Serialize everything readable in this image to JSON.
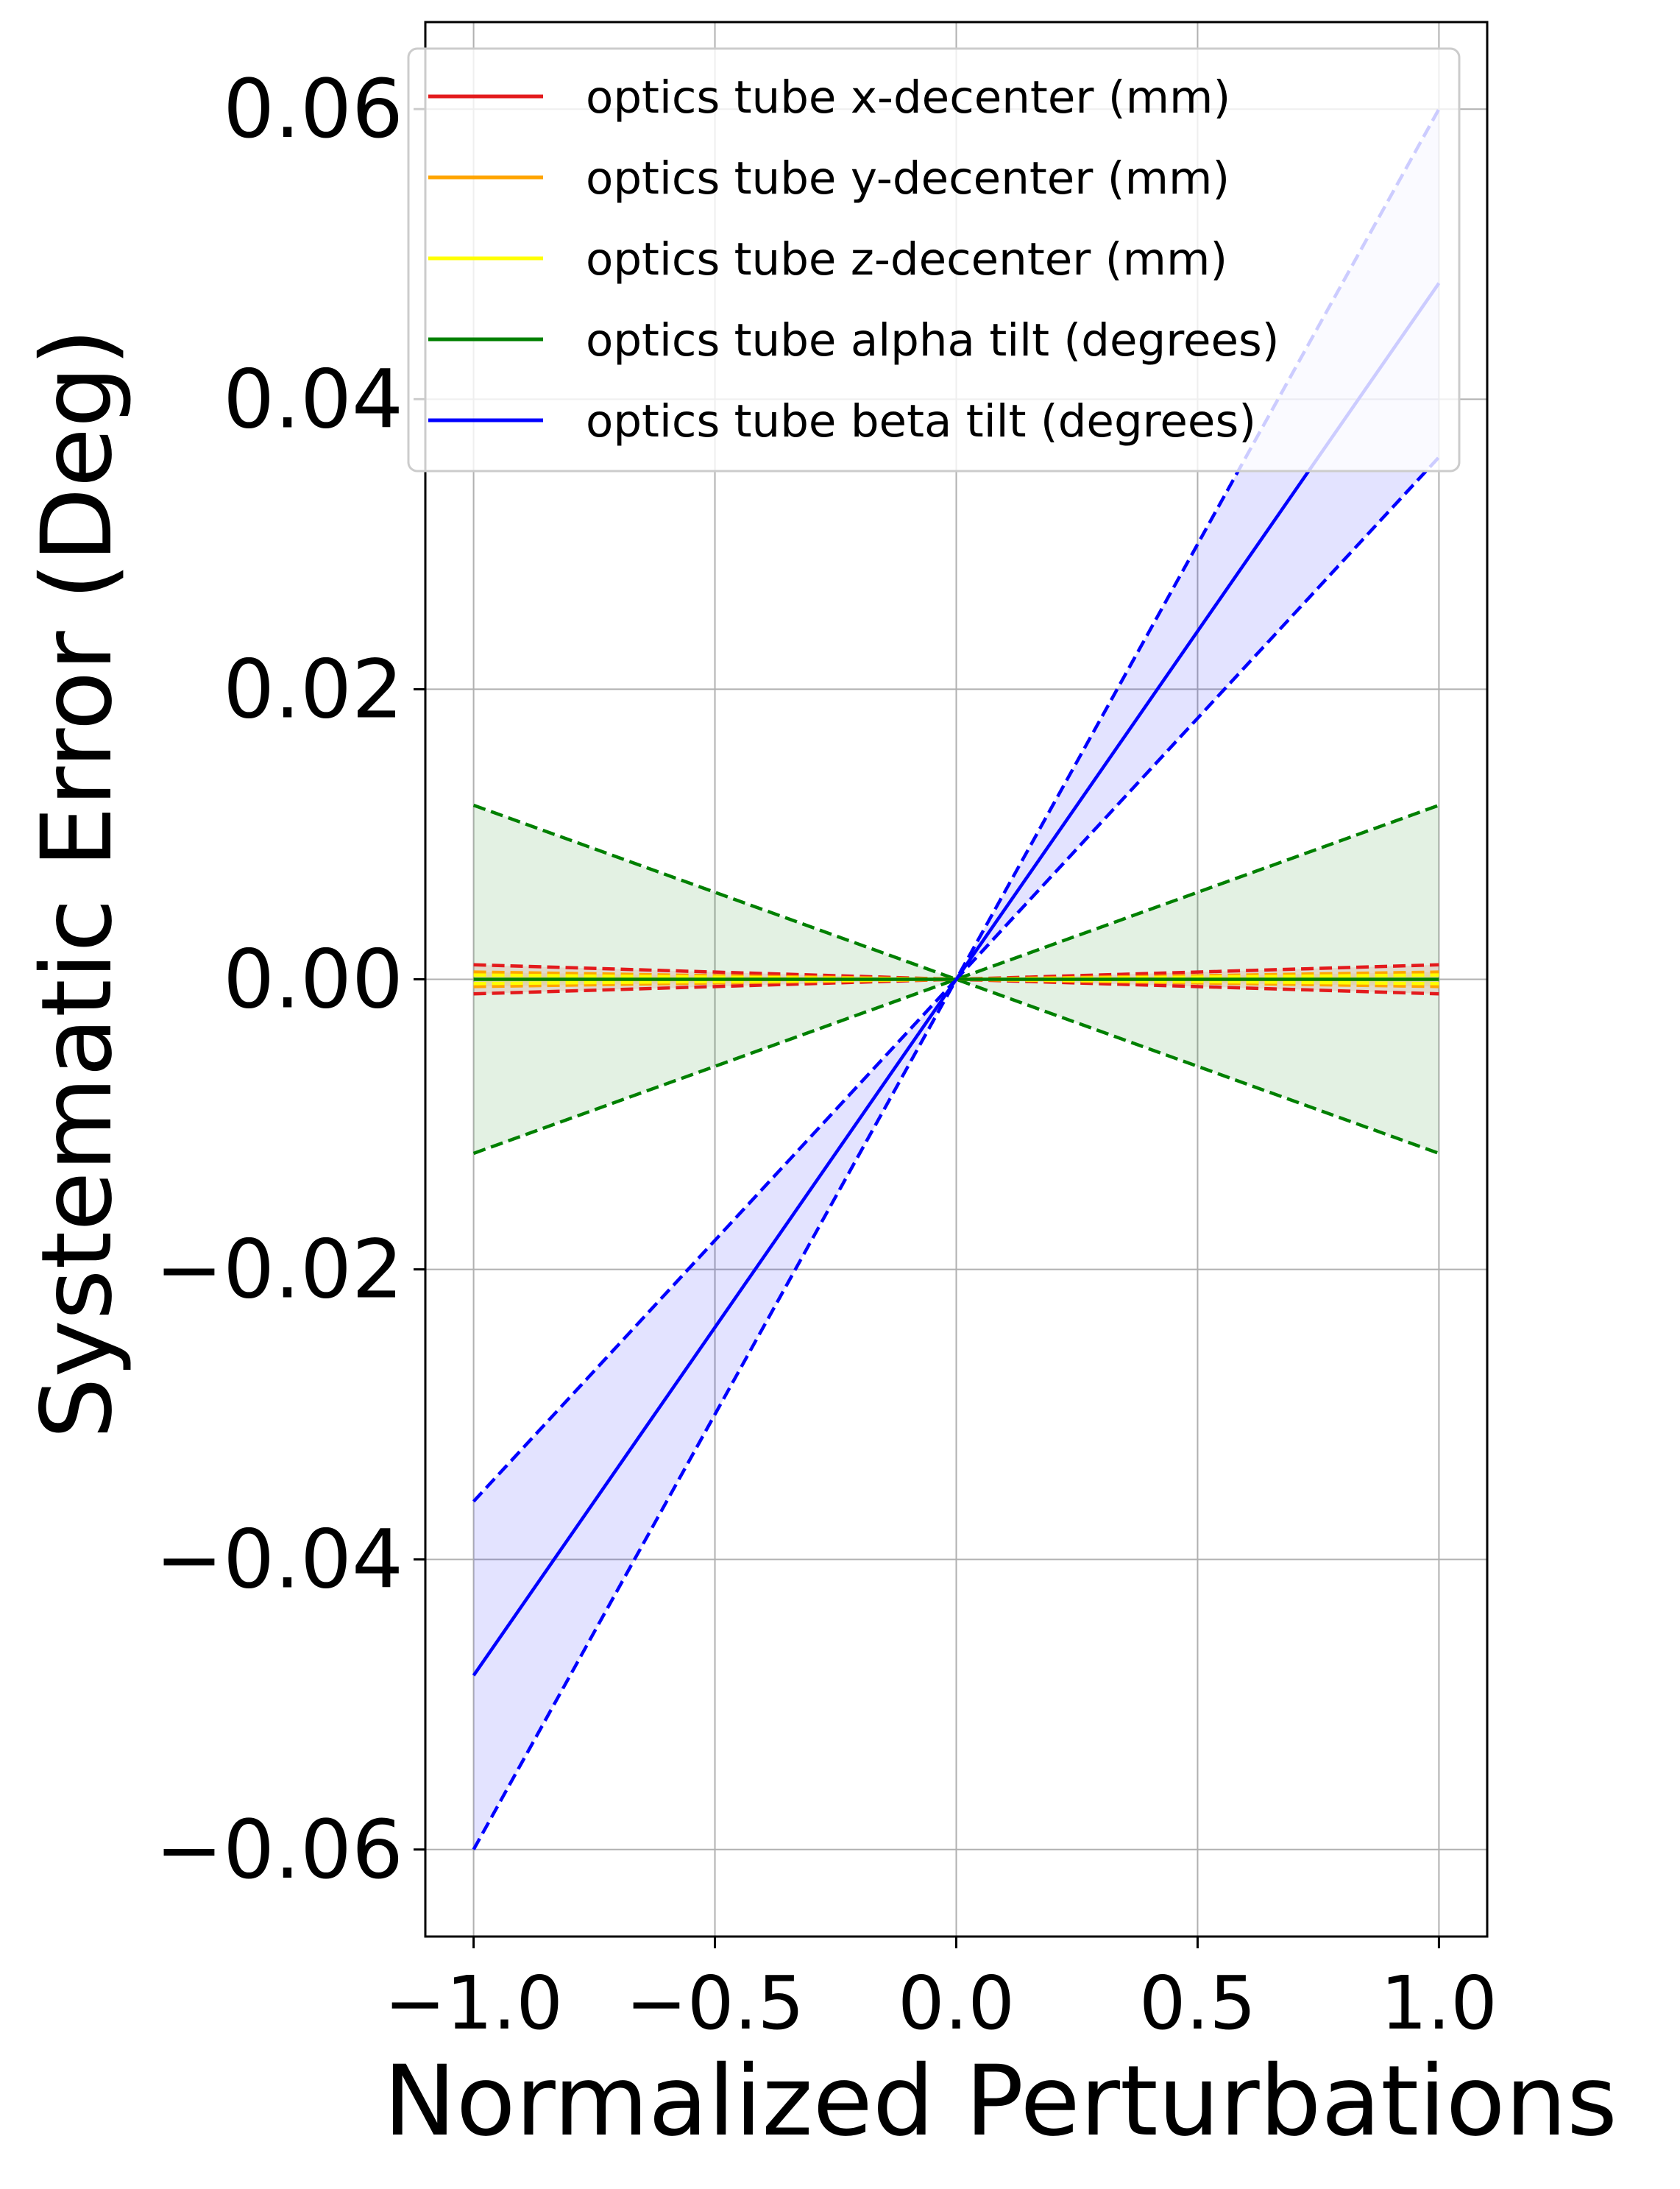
{
  "chart_data": {
    "type": "line",
    "title": "",
    "xlabel": "Normalized Perturbations",
    "ylabel": "Systematic Error (Deg)",
    "xlim": [
      -1.1,
      1.1
    ],
    "ylim": [
      -0.066,
      0.066
    ],
    "xticks": [
      -1.0,
      -0.5,
      0.0,
      0.5,
      1.0
    ],
    "xtick_labels": [
      "−1.0",
      "−0.5",
      "0.0",
      "0.5",
      "1.0"
    ],
    "yticks": [
      -0.06,
      -0.04,
      -0.02,
      0.0,
      0.02,
      0.04,
      0.06
    ],
    "ytick_labels": [
      "−0.06",
      "−0.04",
      "−0.02",
      "0.00",
      "0.02",
      "0.04",
      "0.06"
    ],
    "grid": true,
    "legend_position": "top-right",
    "x": [
      -1.0,
      0.0,
      1.0
    ],
    "series": [
      {
        "name": "optics tube x-decenter (mm)",
        "color": "#e31a1c",
        "values": [
          0.0,
          0.0,
          0.0
        ],
        "band_upper": [
          0.001,
          0.0,
          0.001
        ],
        "band_lower": [
          -0.001,
          0.0,
          -0.001
        ]
      },
      {
        "name": "optics tube y-decenter (mm)",
        "color": "#ffa500",
        "values": [
          0.0,
          0.0,
          0.0
        ],
        "band_upper": [
          0.0005,
          0.0,
          0.0005
        ],
        "band_lower": [
          -0.0005,
          0.0,
          -0.0005
        ]
      },
      {
        "name": "optics tube z-decenter (mm)",
        "color": "#ffff00",
        "values": [
          0.0,
          0.0,
          0.0
        ],
        "band_upper": [
          0.0003,
          0.0,
          0.0003
        ],
        "band_lower": [
          -0.0003,
          0.0,
          -0.0003
        ]
      },
      {
        "name": "optics tube alpha tilt (degrees)",
        "color": "#008000",
        "values": [
          0.0,
          0.0,
          0.0
        ],
        "band_upper": [
          0.012,
          0.0,
          0.012
        ],
        "band_lower": [
          -0.012,
          0.0,
          -0.012
        ]
      },
      {
        "name": "optics tube beta tilt (degrees)",
        "color": "#0000ff",
        "values": [
          -0.048,
          0.0,
          0.048
        ],
        "band_upper": [
          -0.036,
          0.0,
          0.06
        ],
        "band_lower": [
          -0.06,
          0.0,
          0.036
        ]
      }
    ]
  }
}
